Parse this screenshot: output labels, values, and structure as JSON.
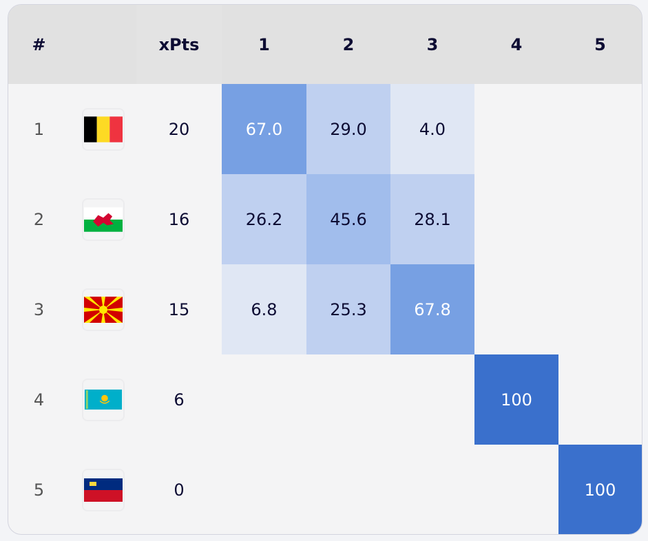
{
  "header": {
    "rank": "#",
    "flag": "",
    "xpts": "xPts",
    "positions": [
      "1",
      "2",
      "3",
      "4",
      "5"
    ]
  },
  "rows": [
    {
      "rank": "1",
      "flag": "belgium-flag-icon",
      "xpts": "20",
      "cells": [
        "67.0",
        "29.0",
        "4.0",
        "",
        ""
      ]
    },
    {
      "rank": "2",
      "flag": "wales-flag-icon",
      "xpts": "16",
      "cells": [
        "26.2",
        "45.6",
        "28.1",
        "",
        ""
      ]
    },
    {
      "rank": "3",
      "flag": "north-macedonia-flag-icon",
      "xpts": "15",
      "cells": [
        "6.8",
        "25.3",
        "67.8",
        "",
        ""
      ]
    },
    {
      "rank": "4",
      "flag": "kazakhstan-flag-icon",
      "xpts": "6",
      "cells": [
        "",
        "",
        "",
        "100",
        ""
      ]
    },
    {
      "rank": "5",
      "flag": "liechtenstein-flag-icon",
      "xpts": "0",
      "cells": [
        "",
        "",
        "",
        "",
        "100"
      ]
    }
  ],
  "colors": {
    "heat_max": "#3a70cc",
    "heat_high": "#77a0e3",
    "heat_mid": "#a1bdec",
    "heat_low": "#bfd0f0",
    "heat_min": "#e0e7f4"
  }
}
